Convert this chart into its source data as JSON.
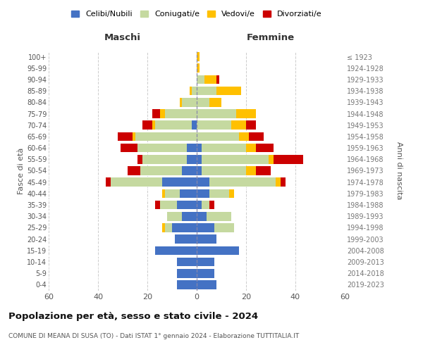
{
  "age_groups": [
    "0-4",
    "5-9",
    "10-14",
    "15-19",
    "20-24",
    "25-29",
    "30-34",
    "35-39",
    "40-44",
    "45-49",
    "50-54",
    "55-59",
    "60-64",
    "65-69",
    "70-74",
    "75-79",
    "80-84",
    "85-89",
    "90-94",
    "95-99",
    "100+"
  ],
  "birth_years": [
    "2019-2023",
    "2014-2018",
    "2009-2013",
    "2004-2008",
    "1999-2003",
    "1994-1998",
    "1989-1993",
    "1984-1988",
    "1979-1983",
    "1974-1978",
    "1969-1973",
    "1964-1968",
    "1959-1963",
    "1954-1958",
    "1949-1953",
    "1944-1948",
    "1939-1943",
    "1934-1938",
    "1929-1933",
    "1924-1928",
    "≤ 1923"
  ],
  "maschi": {
    "celibi": [
      8,
      8,
      8,
      17,
      9,
      10,
      6,
      8,
      7,
      14,
      6,
      4,
      4,
      0,
      2,
      0,
      0,
      0,
      0,
      0,
      0
    ],
    "coniugati": [
      0,
      0,
      0,
      0,
      0,
      3,
      6,
      7,
      6,
      21,
      17,
      18,
      20,
      25,
      15,
      13,
      6,
      2,
      0,
      0,
      0
    ],
    "vedovi": [
      0,
      0,
      0,
      0,
      0,
      1,
      0,
      0,
      1,
      0,
      0,
      0,
      0,
      1,
      1,
      2,
      1,
      1,
      0,
      0,
      0
    ],
    "divorziati": [
      0,
      0,
      0,
      0,
      0,
      0,
      0,
      2,
      0,
      2,
      5,
      2,
      7,
      6,
      4,
      3,
      0,
      0,
      0,
      0,
      0
    ]
  },
  "femmine": {
    "nubili": [
      8,
      7,
      7,
      17,
      8,
      7,
      4,
      2,
      5,
      5,
      2,
      2,
      2,
      0,
      0,
      0,
      0,
      0,
      0,
      0,
      0
    ],
    "coniugate": [
      0,
      0,
      0,
      0,
      0,
      8,
      10,
      3,
      8,
      27,
      18,
      27,
      18,
      17,
      14,
      16,
      5,
      8,
      3,
      0,
      0
    ],
    "vedove": [
      0,
      0,
      0,
      0,
      0,
      0,
      0,
      0,
      2,
      2,
      4,
      2,
      4,
      4,
      6,
      8,
      5,
      10,
      5,
      1,
      1
    ],
    "divorziate": [
      0,
      0,
      0,
      0,
      0,
      0,
      0,
      2,
      0,
      2,
      6,
      12,
      7,
      6,
      4,
      0,
      0,
      0,
      1,
      0,
      0
    ]
  },
  "colors": {
    "celibi": "#4472c4",
    "coniugati": "#c5d9a0",
    "vedovi": "#ffc000",
    "divorziati": "#cc0000"
  },
  "legend_labels": [
    "Celibi/Nubili",
    "Coniugati/e",
    "Vedovi/e",
    "Divorziati/e"
  ],
  "title": "Popolazione per età, sesso e stato civile - 2024",
  "subtitle": "COMUNE DI MEANA DI SUSA (TO) - Dati ISTAT 1° gennaio 2024 - Elaborazione TUTTITALIA.IT",
  "xlabel_left": "Maschi",
  "xlabel_right": "Femmine",
  "ylabel_left": "Fasce di età",
  "ylabel_right": "Anni di nascita",
  "xlim": 60,
  "bg_color": "#ffffff",
  "grid_color": "#cccccc",
  "bar_height": 0.78
}
